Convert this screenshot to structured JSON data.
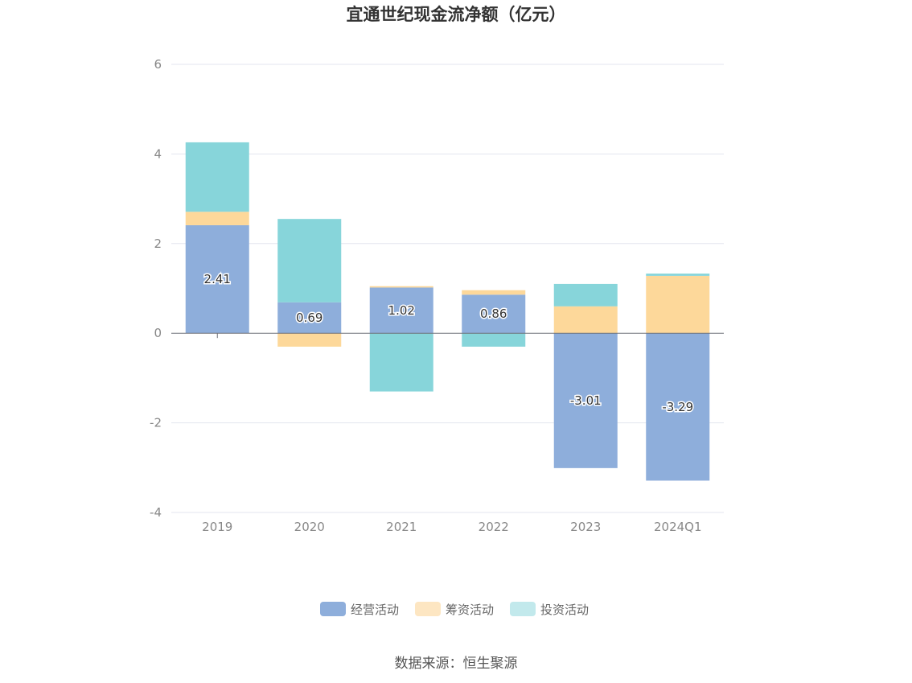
{
  "chart_data": {
    "type": "bar",
    "stacked": true,
    "title": "宜通世纪现金流净额（亿元）",
    "categories": [
      "2019",
      "2020",
      "2021",
      "2022",
      "2023",
      "2024Q1"
    ],
    "series": [
      {
        "name": "经营活动",
        "color": "#8eaedb",
        "values": [
          2.41,
          0.69,
          1.02,
          0.86,
          -3.01,
          -3.29
        ],
        "labeled": true
      },
      {
        "name": "筹资活动",
        "color": "#fdd89a",
        "values": [
          0.3,
          -0.3,
          0.03,
          0.1,
          0.6,
          1.28
        ]
      },
      {
        "name": "投资活动",
        "color": "#87d5da",
        "values": [
          1.55,
          1.86,
          -1.3,
          -0.3,
          0.5,
          0.05
        ]
      }
    ],
    "ylim": [
      -4,
      6
    ],
    "yticks": [
      "-4",
      "-2",
      "0",
      "2",
      "4",
      "6"
    ],
    "grid": true,
    "legend_position": "bottom",
    "legend_colors": [
      "#8eaedb",
      "#fde6c2",
      "#c2e9ec"
    ]
  },
  "source": "数据来源：恒生聚源"
}
